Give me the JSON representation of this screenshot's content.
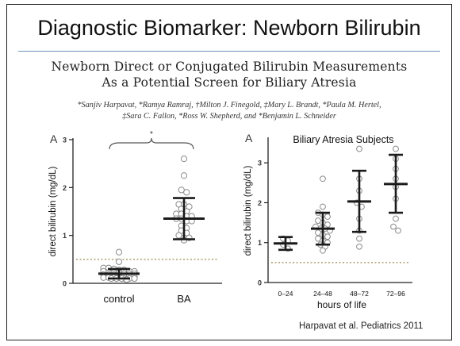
{
  "slide": {
    "title": "Diagnostic Biomarker: Newborn Bilirubin",
    "citation": "Harpavat et al. Pediatrics 2011"
  },
  "paper": {
    "title_line1": "Newborn Direct or Conjugated Bilirubin Measurements",
    "title_line2": "As a Potential Screen for Biliary Atresia",
    "authors_line1": "*Sanjiv Harpavat, *Ramya Ramraj, †Milton J. Finegold, ‡Mary L. Brandt, *Paula M. Hertel,",
    "authors_line2": "‡Sara C. Fallon, *Ross W. Shepherd, and *Benjamin L. Schneider"
  },
  "chart_data": [
    {
      "type": "scatter",
      "panel_label": "A",
      "categories": [
        "control",
        "BA"
      ],
      "ylabel": "direct bilirubin (mg/dL)",
      "xlabel": "",
      "ylim": [
        0,
        3
      ],
      "yticks": [
        "0",
        "1",
        "2",
        "3"
      ],
      "significance_marker": "*",
      "reference_line": 0.5,
      "points": {
        "control": [
          0.65,
          0.45,
          0.32,
          0.32,
          0.3,
          0.28,
          0.28,
          0.25,
          0.25,
          0.25,
          0.22,
          0.22,
          0.22,
          0.2,
          0.2,
          0.2,
          0.18,
          0.18,
          0.18,
          0.16,
          0.15,
          0.15,
          0.14,
          0.12,
          0.12,
          0.12,
          0.12,
          0.1,
          0.1,
          0.1,
          0.1,
          0.1,
          0.1,
          0.08
        ],
        "BA": [
          2.6,
          2.25,
          1.95,
          1.9,
          1.65,
          1.65,
          1.6,
          1.55,
          1.5,
          1.45,
          1.45,
          1.4,
          1.4,
          1.35,
          1.35,
          1.3,
          1.3,
          1.2,
          1.15,
          1.1,
          1.05,
          1.0,
          0.95,
          0.95,
          0.9
        ]
      },
      "summary": {
        "control": {
          "mean": 0.2,
          "low": 0.1,
          "high": 0.3
        },
        "BA": {
          "mean": 1.35,
          "low": 0.92,
          "high": 1.78
        }
      }
    },
    {
      "type": "scatter",
      "panel_label": "A",
      "title": "Biliary Atresia Subjects",
      "categories": [
        "0–24",
        "24–48",
        "48–72",
        "72–96"
      ],
      "xlabel": "hours of life",
      "ylabel": "direct bilirubin (mg/dL)",
      "ylim": [
        0,
        3.6
      ],
      "yticks": [
        "0",
        "1",
        "2",
        "3"
      ],
      "reference_line": 0.5,
      "points": {
        "0–24": [
          1.1,
          1.05,
          0.95,
          0.85
        ],
        "24–48": [
          2.6,
          1.9,
          1.75,
          1.7,
          1.65,
          1.55,
          1.5,
          1.45,
          1.4,
          1.35,
          1.35,
          1.3,
          1.25,
          1.2,
          1.15,
          1.1,
          1.05,
          1.0,
          0.95,
          0.9,
          0.8
        ],
        "48–72": [
          3.35,
          2.6,
          2.3,
          2.0,
          1.9,
          1.6,
          1.3,
          1.1,
          0.9
        ],
        "72–96": [
          3.35,
          3.1,
          2.85,
          2.6,
          2.4,
          2.1,
          1.6,
          1.4,
          1.3
        ]
      },
      "summary": {
        "0–24": {
          "mean": 0.98,
          "low": 0.82,
          "high": 1.14
        },
        "24–48": {
          "mean": 1.35,
          "low": 0.95,
          "high": 1.75
        },
        "48–72": {
          "mean": 2.03,
          "low": 1.27,
          "high": 2.8
        },
        "72–96": {
          "mean": 2.47,
          "low": 1.75,
          "high": 3.2
        }
      }
    }
  ]
}
